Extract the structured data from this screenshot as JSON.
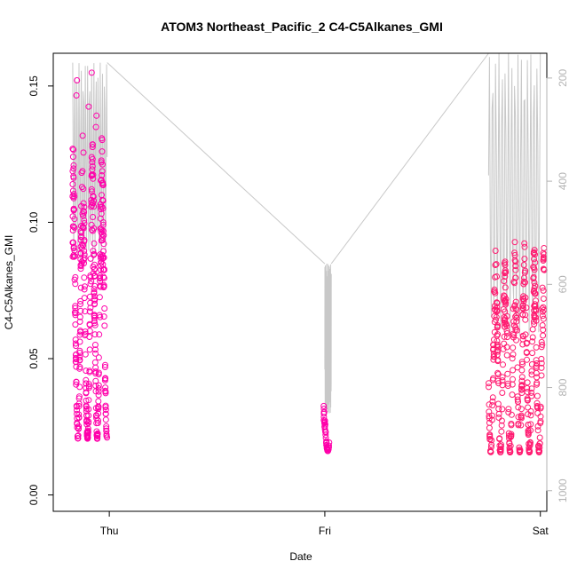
{
  "chart_data": {
    "type": "scatter",
    "title": "ATOM3 Northeast_Pacific_2 C4-C5Alkanes_GMI",
    "xlabel": "Date",
    "ylabel": "C4-C5Alkanes_GMI",
    "x_ticks": [
      "Thu",
      "Fri",
      "Sat"
    ],
    "y_ticks": [
      "0.00",
      "0.05",
      "0.10",
      "0.15"
    ],
    "y_tick_values": [
      0.0,
      0.05,
      0.1,
      0.15
    ],
    "y_right_ticks": [
      "200",
      "400",
      "600",
      "800",
      "1000"
    ],
    "y_right_tick_values": [
      200,
      400,
      600,
      800,
      1000
    ],
    "xlim_days": [
      -0.26,
      2.03
    ],
    "ylim": [
      -0.006,
      0.162
    ],
    "y_right_lim": [
      1040,
      152
    ],
    "right_axis_inverted": true,
    "grid": false,
    "legend": "none",
    "colors": {
      "points": "#ff00aa",
      "points_alt": "#ff1a70",
      "line": "#c8c8c8",
      "right_axis": "#b3b3b3"
    },
    "series": [
      {
        "marker": "circle",
        "segments": [
          {
            "start": -0.17,
            "end": -0.01,
            "low": 0.001,
            "high": 0.132,
            "peak": 0.156
          },
          {
            "start": 0.995,
            "end": 1.02,
            "low": 0.013,
            "high": 0.034
          },
          {
            "start": 1.76,
            "end": 2.02,
            "low": 0.002,
            "high": 0.093
          }
        ]
      },
      {
        "line": true,
        "segments": [
          {
            "start": -0.17,
            "end": -0.01,
            "low": 170,
            "high": 560
          },
          {
            "start": 1.0,
            "end": 1.03,
            "low": 560,
            "high": 850
          },
          {
            "start": 1.76,
            "end": 2.0,
            "low": 150,
            "high": 700
          }
        ]
      }
    ]
  }
}
